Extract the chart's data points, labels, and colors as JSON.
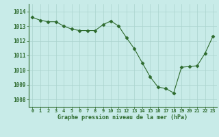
{
  "x": [
    0,
    1,
    2,
    3,
    4,
    5,
    6,
    7,
    8,
    9,
    10,
    11,
    12,
    13,
    14,
    15,
    16,
    17,
    18,
    19,
    20,
    21,
    22,
    23
  ],
  "y": [
    1013.6,
    1013.4,
    1013.3,
    1013.3,
    1013.0,
    1012.8,
    1012.7,
    1012.7,
    1012.7,
    1013.1,
    1013.35,
    1013.0,
    1012.2,
    1011.45,
    1010.5,
    1009.55,
    1008.85,
    1008.75,
    1008.45,
    1010.2,
    1010.25,
    1010.3,
    1011.15,
    1012.3
  ],
  "line_color": "#2d6a2d",
  "marker": "D",
  "marker_size": 2.5,
  "bg_color": "#c8ebe8",
  "grid_color": "#aad4ce",
  "xlabel": "Graphe pression niveau de la mer (hPa)",
  "xlabel_color": "#2d6a2d",
  "tick_color": "#2d6a2d",
  "ylim": [
    1007.5,
    1014.5
  ],
  "yticks": [
    1008,
    1009,
    1010,
    1011,
    1012,
    1013,
    1014
  ],
  "xticks": [
    0,
    1,
    2,
    3,
    4,
    5,
    6,
    7,
    8,
    9,
    10,
    11,
    12,
    13,
    14,
    15,
    16,
    17,
    18,
    19,
    20,
    21,
    22,
    23
  ],
  "axis_bottom_color": "#2d6a2d",
  "font_family": "monospace"
}
